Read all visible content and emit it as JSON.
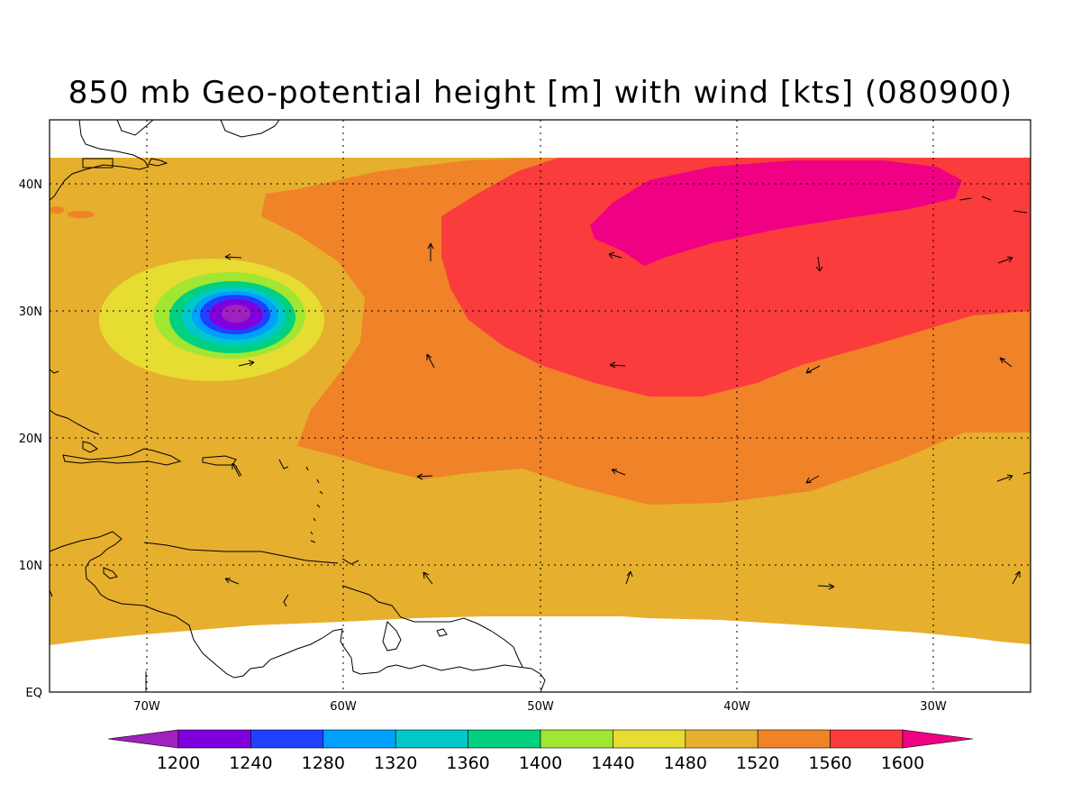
{
  "title": "850 mb Geo-potential height [m] with wind [kts] (080900)",
  "lon_ticks": [
    "70W",
    "60W",
    "50W",
    "40W",
    "30W"
  ],
  "lat_ticks": [
    "EQ",
    "10N",
    "20N",
    "30N",
    "40N"
  ],
  "colorbar": {
    "labels": [
      "1200",
      "1240",
      "1280",
      "1320",
      "1360",
      "1400",
      "1440",
      "1480",
      "1520",
      "1560",
      "1600"
    ],
    "colors": [
      "#a020c0",
      "#8000dd",
      "#2040ff",
      "#00a0ff",
      "#00c8c8",
      "#00d080",
      "#a0e632",
      "#e6dc32",
      "#e6af2d",
      "#f08228",
      "#fa3c3c",
      "#f00082"
    ]
  },
  "field_colors": {
    "c1200": "#a020c0",
    "c1240": "#8000dd",
    "c1280": "#2040ff",
    "c1320": "#00a0ff",
    "c1360": "#00c8c8",
    "c1400": "#00d080",
    "c1440": "#a0e632",
    "c1480": "#e6dc32",
    "c1520": "#e6af2d",
    "c1560": "#f08228",
    "c1600": "#fa3c3c",
    "c1640": "#f00082"
  }
}
